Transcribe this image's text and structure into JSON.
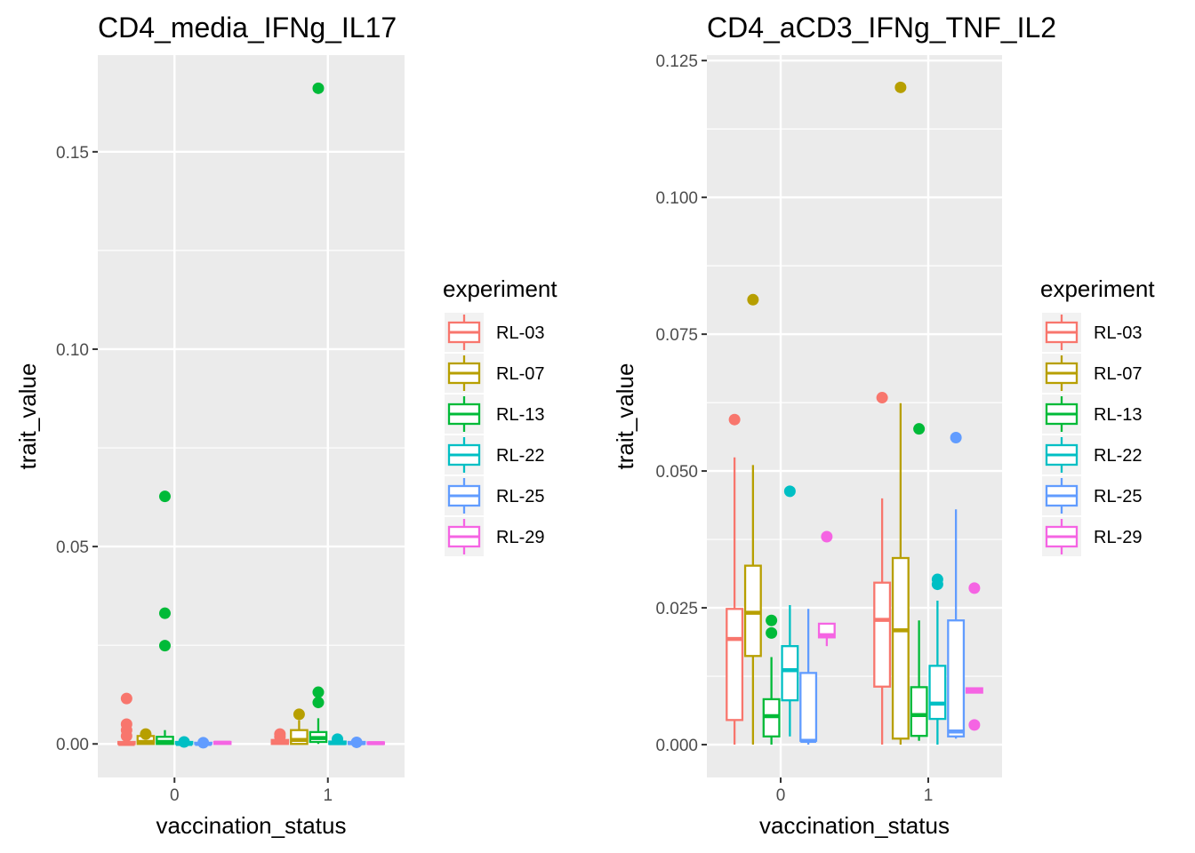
{
  "legend_title": "experiment",
  "experiments": [
    "RL-03",
    "RL-07",
    "RL-13",
    "RL-22",
    "RL-25",
    "RL-29"
  ],
  "colors": [
    "#F8766D",
    "#B79F00",
    "#00BA38",
    "#00BFC4",
    "#619CFF",
    "#F564E3"
  ],
  "chart_data": [
    {
      "type": "box",
      "title": "CD4_media_IFNg_IL17",
      "xlabel": "vaccination_status",
      "ylabel": "trait_value",
      "categories": [
        "0",
        "1"
      ],
      "ylim": [
        -0.0085,
        0.1745
      ],
      "yticks": [
        0,
        0.05,
        0.1,
        0.15
      ],
      "ytick_labels": [
        "0.00",
        "0.05",
        "0.10",
        "0.15"
      ],
      "boxes": [
        {
          "cat": 0,
          "exp": 0,
          "lo": 0,
          "q1": 0,
          "med": 0,
          "q3": 0.0005,
          "hi": 0.001,
          "out": [
            0.0115,
            0.005,
            0.0035,
            0.002
          ]
        },
        {
          "cat": 0,
          "exp": 1,
          "lo": 0,
          "q1": 0,
          "med": 0.0005,
          "q3": 0.002,
          "hi": 0.003,
          "out": [
            0.0025
          ]
        },
        {
          "cat": 0,
          "exp": 2,
          "lo": 0,
          "q1": 0,
          "med": 0.0005,
          "q3": 0.0018,
          "hi": 0.0035,
          "out": [
            0.0627,
            0.0331,
            0.0249
          ]
        },
        {
          "cat": 0,
          "exp": 3,
          "lo": 0,
          "q1": 0,
          "med": 0,
          "q3": 0.0005,
          "hi": 0.001,
          "out": [
            0.0005
          ]
        },
        {
          "cat": 0,
          "exp": 4,
          "lo": 0,
          "q1": 0,
          "med": 0,
          "q3": 0.0003,
          "hi": 0.0005,
          "out": [
            0.0003
          ]
        },
        {
          "cat": 0,
          "exp": 5,
          "lo": 0,
          "q1": 0,
          "med": 0.0003,
          "q3": 0.0005,
          "hi": 0.0007,
          "out": []
        },
        {
          "cat": 1,
          "exp": 0,
          "lo": 0,
          "q1": 0,
          "med": 0.0003,
          "q3": 0.001,
          "hi": 0.0015,
          "out": [
            0.0025,
            0.0018
          ]
        },
        {
          "cat": 1,
          "exp": 1,
          "lo": 0,
          "q1": 0,
          "med": 0.001,
          "q3": 0.0035,
          "hi": 0.006,
          "out": [
            0.0075
          ]
        },
        {
          "cat": 1,
          "exp": 2,
          "lo": 0,
          "q1": 0.0005,
          "med": 0.0015,
          "q3": 0.003,
          "hi": 0.0065,
          "out": [
            0.1661,
            0.0131,
            0.0105
          ]
        },
        {
          "cat": 1,
          "exp": 3,
          "lo": 0,
          "q1": 0,
          "med": 0.0002,
          "q3": 0.0006,
          "hi": 0.001,
          "out": [
            0.0012
          ]
        },
        {
          "cat": 1,
          "exp": 4,
          "lo": 0,
          "q1": 0,
          "med": 0.0002,
          "q3": 0.0005,
          "hi": 0.0008,
          "out": [
            0.0004
          ]
        },
        {
          "cat": 1,
          "exp": 5,
          "lo": 0,
          "q1": 0,
          "med": 0.0002,
          "q3": 0.0004,
          "hi": 0.0006,
          "out": []
        }
      ]
    },
    {
      "type": "box",
      "title": "CD4_aCD3_IFNg_TNF_IL2",
      "xlabel": "vaccination_status",
      "ylabel": "trait_value",
      "categories": [
        "0",
        "1"
      ],
      "ylim": [
        -0.006,
        0.126
      ],
      "yticks": [
        0,
        0.025,
        0.05,
        0.075,
        0.1,
        0.125
      ],
      "ytick_labels": [
        "0.000",
        "0.025",
        "0.050",
        "0.075",
        "0.100",
        "0.125"
      ],
      "boxes": [
        {
          "cat": 0,
          "exp": 0,
          "lo": 0,
          "q1": 0.0045,
          "med": 0.0193,
          "q3": 0.0248,
          "hi": 0.0525,
          "out": [
            0.0594
          ]
        },
        {
          "cat": 0,
          "exp": 1,
          "lo": 0,
          "q1": 0.0162,
          "med": 0.0241,
          "q3": 0.0327,
          "hi": 0.0511,
          "out": [
            0.0813
          ]
        },
        {
          "cat": 0,
          "exp": 2,
          "lo": 0,
          "q1": 0.0015,
          "med": 0.0052,
          "q3": 0.0083,
          "hi": 0.016,
          "out": [
            0.0227,
            0.0204
          ]
        },
        {
          "cat": 0,
          "exp": 3,
          "lo": 0.0015,
          "q1": 0.0081,
          "med": 0.0136,
          "q3": 0.018,
          "hi": 0.0255,
          "out": [
            0.0463
          ]
        },
        {
          "cat": 0,
          "exp": 4,
          "lo": 0,
          "q1": 0.0007,
          "med": 0.0007,
          "q3": 0.0131,
          "hi": 0.0248,
          "out": []
        },
        {
          "cat": 0,
          "exp": 5,
          "lo": 0.018,
          "q1": 0.0196,
          "med": 0.02,
          "q3": 0.0221,
          "hi": 0.0222,
          "out": [
            0.038
          ]
        },
        {
          "cat": 1,
          "exp": 0,
          "lo": 0,
          "q1": 0.0106,
          "med": 0.0228,
          "q3": 0.0296,
          "hi": 0.045,
          "out": [
            0.0634
          ]
        },
        {
          "cat": 1,
          "exp": 1,
          "lo": 0,
          "q1": 0.0011,
          "med": 0.0209,
          "q3": 0.0341,
          "hi": 0.0624,
          "out": [
            0.1201
          ]
        },
        {
          "cat": 1,
          "exp": 2,
          "lo": 0.0007,
          "q1": 0.0016,
          "med": 0.0054,
          "q3": 0.0105,
          "hi": 0.0227,
          "out": [
            0.0577
          ]
        },
        {
          "cat": 1,
          "exp": 3,
          "lo": 0,
          "q1": 0.0047,
          "med": 0.0075,
          "q3": 0.0144,
          "hi": 0.0263,
          "out": [
            0.0302,
            0.0293
          ]
        },
        {
          "cat": 1,
          "exp": 4,
          "lo": 0.0011,
          "q1": 0.0015,
          "med": 0.0024,
          "q3": 0.0227,
          "hi": 0.043,
          "out": [
            0.0561
          ]
        },
        {
          "cat": 1,
          "exp": 5,
          "lo": 0.0095,
          "q1": 0.0095,
          "med": 0.0099,
          "q3": 0.0103,
          "hi": 0.0103,
          "out": [
            0.0286,
            0.0036
          ]
        }
      ]
    }
  ]
}
